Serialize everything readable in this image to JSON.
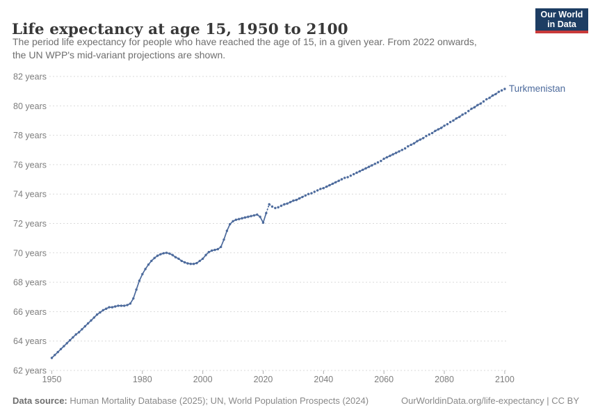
{
  "header": {
    "title": "Life expectancy at age 15, 1950 to 2100",
    "subtitle_line1": "The period life expectancy for people who have reached the age of 15, in a given year. From 2022 onwards,",
    "subtitle_line2": "the UN WPP's mid-variant projections are shown.",
    "logo_line1": "Our World",
    "logo_line2": "in Data"
  },
  "footer": {
    "source_label": "Data source:",
    "source_text": " Human Mortality Database (2025); UN, World Population Prospects (2024)",
    "attribution": "OurWorldinData.org/life-expectancy | CC BY"
  },
  "colors": {
    "line": "#4c6a9c",
    "entity_label": "#4c6a9c",
    "grid": "#d9d9d9",
    "tick": "#b0b0b0",
    "axis_text": "#7d7d7d",
    "logo_navy": "#1d3d63",
    "logo_red": "#c93a3a"
  },
  "chart_data": {
    "type": "line",
    "title": "Life expectancy at age 15, 1950 to 2100",
    "entity_label": "Turkmenistan",
    "series_name": "Turkmenistan",
    "unit_suffix": "years",
    "x_start": 1950,
    "x_step": 1,
    "x_end": 2100,
    "projection_start_year": 2022,
    "xlim": [
      1950,
      2100
    ],
    "ylim": [
      62,
      82
    ],
    "grid": true,
    "legend_position": "end-of-line",
    "xtick_values": [
      1950,
      1980,
      2000,
      2020,
      2040,
      2060,
      2080,
      2100
    ],
    "xtick_labels": [
      "1950",
      "1980",
      "2000",
      "2020",
      "2040",
      "2060",
      "2080",
      "2100"
    ],
    "ytick_values": [
      62,
      64,
      66,
      68,
      70,
      72,
      74,
      76,
      78,
      80,
      82
    ],
    "ytick_labels": [
      "62 years",
      "64 years",
      "66 years",
      "68 years",
      "70 years",
      "72 years",
      "74 years",
      "76 years",
      "78 years",
      "80 years",
      "82 years"
    ],
    "values": [
      62.85,
      63.05,
      63.25,
      63.45,
      63.65,
      63.85,
      64.05,
      64.25,
      64.45,
      64.6,
      64.8,
      65.0,
      65.2,
      65.4,
      65.6,
      65.8,
      65.95,
      66.1,
      66.2,
      66.3,
      66.3,
      66.35,
      66.4,
      66.4,
      66.4,
      66.45,
      66.55,
      66.9,
      67.5,
      68.1,
      68.55,
      68.9,
      69.2,
      69.45,
      69.65,
      69.8,
      69.9,
      69.97,
      70.0,
      69.95,
      69.85,
      69.7,
      69.6,
      69.45,
      69.35,
      69.28,
      69.25,
      69.25,
      69.3,
      69.45,
      69.6,
      69.85,
      70.05,
      70.15,
      70.2,
      70.25,
      70.4,
      70.9,
      71.5,
      71.95,
      72.15,
      72.25,
      72.3,
      72.35,
      72.4,
      72.45,
      72.5,
      72.55,
      72.6,
      72.45,
      72.05,
      72.7,
      73.3,
      73.15,
      73.05,
      73.1,
      73.2,
      73.3,
      73.35,
      73.45,
      73.55,
      73.6,
      73.7,
      73.8,
      73.9,
      74.0,
      74.05,
      74.15,
      74.25,
      74.35,
      74.4,
      74.5,
      74.6,
      74.7,
      74.8,
      74.9,
      75.0,
      75.1,
      75.15,
      75.25,
      75.35,
      75.45,
      75.55,
      75.65,
      75.75,
      75.85,
      75.95,
      76.05,
      76.15,
      76.25,
      76.4,
      76.5,
      76.6,
      76.7,
      76.8,
      76.9,
      77.0,
      77.1,
      77.25,
      77.35,
      77.45,
      77.6,
      77.7,
      77.8,
      77.95,
      78.05,
      78.15,
      78.3,
      78.4,
      78.5,
      78.65,
      78.75,
      78.9,
      79.0,
      79.15,
      79.25,
      79.4,
      79.5,
      79.65,
      79.8,
      79.9,
      80.05,
      80.15,
      80.3,
      80.45,
      80.55,
      80.7,
      80.8,
      80.95,
      81.05,
      81.15
    ]
  }
}
